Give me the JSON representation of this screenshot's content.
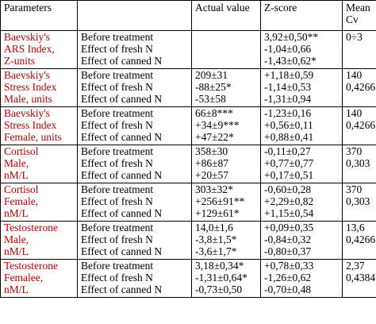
{
  "headers": [
    "Parameters",
    "",
    "Actual value",
    "Z-score",
    "Mean Cv"
  ],
  "headers_lines": {
    "mean": [
      "Mean",
      "Cv"
    ]
  },
  "conditions": [
    "Before treatment",
    "Effect of fresh N",
    "Effect of canned N"
  ],
  "rows": [
    {
      "param": [
        "Baevskiy's",
        "ARS Index,",
        "Z-units"
      ],
      "actual": [
        "",
        "",
        ""
      ],
      "z": [
        "3,92±0,50**",
        "-1,04±0,66",
        "-1,43±0,62*"
      ],
      "mean": [
        "0÷3",
        ""
      ]
    },
    {
      "param": [
        "Baevskiy's",
        "Stress Index",
        "Male, units"
      ],
      "actual": [
        "209±31",
        "-88±25*",
        "-53±58"
      ],
      "z": [
        "+1,18±0,59",
        "-1,14±0,53",
        "-1,31±0,94"
      ],
      "mean": [
        "140",
        "0,4266"
      ]
    },
    {
      "param": [
        "Baevskiy's",
        "Stress Index",
        "Female, units"
      ],
      "actual": [
        "66±8***",
        "+34±9***",
        "+47±22*"
      ],
      "z": [
        "-1,23±0,16",
        "+0,56±0,11",
        "+0,88±0,41"
      ],
      "mean": [
        "140",
        "0,4266"
      ]
    },
    {
      "param": [
        "Cortisol",
        "Male,",
        "nM/L"
      ],
      "actual": [
        "358±30",
        "+86±87",
        "+20±57"
      ],
      "z": [
        "-0,11±0,27",
        "+0,77±0,77",
        "+0,17±0,51"
      ],
      "mean": [
        "370",
        "0,303"
      ]
    },
    {
      "param": [
        "Cortisol",
        "Female,",
        "nM/L"
      ],
      "actual": [
        "303±32*",
        "+256±91**",
        "+129±61*"
      ],
      "z": [
        "-0,60±0,28",
        "+2,29±0,82",
        "+1,15±0,54"
      ],
      "mean": [
        "370",
        "0,303"
      ]
    },
    {
      "param": [
        "Testosterone",
        "Male,",
        "nM/L"
      ],
      "actual": [
        "14,0±1,6",
        "-3,8±1,5*",
        "-3,6±1,7*"
      ],
      "z": [
        "+0,09±0,35",
        "-0,84±0,32",
        "-0,80±0,37"
      ],
      "mean": [
        "13,6",
        "0,4266"
      ]
    },
    {
      "param": [
        "Testosterone",
        "Femalee,",
        "nM/L"
      ],
      "actual": [
        "3,18±0,34*",
        "-1,31±0,64*",
        "-0,73±0,50"
      ],
      "z": [
        "+0,78±0,33",
        "-1,26±0,62",
        "-0,70±0,48"
      ],
      "mean": [
        "2,37",
        "0,4384"
      ]
    }
  ]
}
